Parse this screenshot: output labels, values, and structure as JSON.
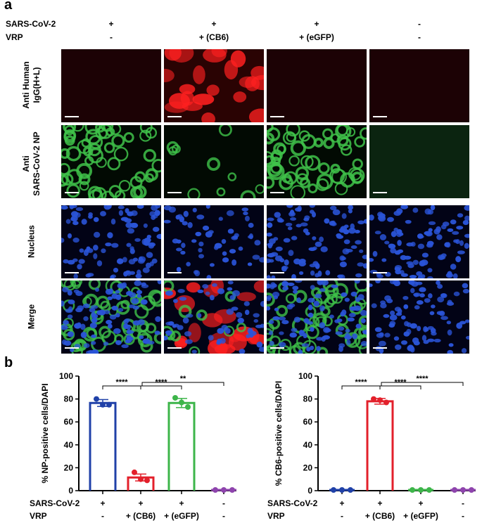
{
  "panel_a": {
    "letter": "a",
    "conditions": {
      "sars_label": "SARS-CoV-2",
      "vrp_label": "VRP",
      "sars_values": [
        "+",
        "+",
        "+",
        "-"
      ],
      "vrp_values": [
        "-",
        "+ (CB6)",
        "+ (eGFP)",
        "-"
      ]
    },
    "rows": [
      {
        "label_lines": [
          "Anti Human",
          "IgG(H+L)"
        ],
        "channel": "red"
      },
      {
        "label_lines": [
          "Anti",
          "SARS-CoV-2 NP"
        ],
        "channel": "green"
      },
      {
        "label_lines": [
          "Nucleus"
        ],
        "channel": "blue"
      },
      {
        "label_lines": [
          "Merge"
        ],
        "channel": "merge"
      }
    ],
    "colors": {
      "red": "#ff2020",
      "green": "#3fc24a",
      "blue": "#2a54d8"
    }
  },
  "panel_b": {
    "letter": "b",
    "x_conditions": {
      "sars_label": "SARS-CoV-2",
      "vrp_label": "VRP",
      "sars_values": [
        "+",
        "+",
        "+",
        "-"
      ],
      "vrp_values": [
        "-",
        "+ (CB6)",
        "+ (eGFP)",
        "-"
      ]
    }
  },
  "chart_data": [
    {
      "type": "bar",
      "ylabel": "% NP-positive cells/DAPI",
      "ylim": [
        0,
        100
      ],
      "yticks": [
        0,
        20,
        40,
        60,
        80,
        100
      ],
      "categories": [
        "1",
        "2",
        "3",
        "4"
      ],
      "values": [
        76.5,
        11.5,
        76.5,
        0
      ],
      "errors": [
        3,
        3,
        4,
        0
      ],
      "points": [
        [
          80,
          75,
          75
        ],
        [
          16,
          9,
          10
        ],
        [
          81,
          73,
          77
        ],
        [
          0,
          0,
          0
        ]
      ],
      "colors": [
        "#2041a8",
        "#e3202b",
        "#3db54a",
        "#8e44ad"
      ],
      "significance": [
        {
          "from": 0,
          "to": 1,
          "label": "****"
        },
        {
          "from": 1,
          "to": 2,
          "label": "****"
        },
        {
          "from": 1,
          "to": 3,
          "label": "**"
        }
      ]
    },
    {
      "type": "bar",
      "ylabel": "% CB6-positive cells/DAPI",
      "ylim": [
        0,
        100
      ],
      "yticks": [
        0,
        20,
        40,
        60,
        80,
        100
      ],
      "categories": [
        "1",
        "2",
        "3",
        "4"
      ],
      "values": [
        0,
        78,
        0,
        0
      ],
      "errors": [
        0,
        2.5,
        0,
        0
      ],
      "points": [
        [
          0,
          0,
          0
        ],
        [
          80,
          77,
          79
        ],
        [
          0,
          0,
          0
        ],
        [
          0,
          0,
          0
        ]
      ],
      "colors": [
        "#2041a8",
        "#e3202b",
        "#3db54a",
        "#8e44ad"
      ],
      "significance": [
        {
          "from": 0,
          "to": 1,
          "label": "****"
        },
        {
          "from": 1,
          "to": 2,
          "label": "****"
        },
        {
          "from": 1,
          "to": 3,
          "label": "****"
        }
      ]
    }
  ]
}
